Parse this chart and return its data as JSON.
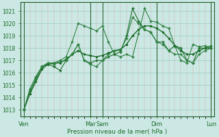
{
  "bg_color": "#cce8e4",
  "grid_major_color": "#99c8c0",
  "grid_minor_color": "#d4a8a8",
  "line_dark": "#1a6b28",
  "line_mid": "#2d8040",
  "xlabel": "Pression niveau de la mer( hPa )",
  "ylabel_ticks": [
    1013,
    1014,
    1015,
    1016,
    1017,
    1018,
    1019,
    1020,
    1021
  ],
  "ylim": [
    1012.5,
    1021.7
  ],
  "xtick_labels": [
    "Ven",
    "Mar",
    "Sam",
    "Dim",
    "Lun"
  ],
  "xtick_positions": [
    0,
    11,
    13,
    22,
    31
  ],
  "n_points": 32,
  "xlim": [
    -0.5,
    31.5
  ],
  "series1_x": [
    0,
    1,
    2,
    3,
    4,
    5,
    6,
    7,
    8,
    9,
    10,
    11,
    12,
    13,
    14,
    15,
    16,
    17,
    18,
    19,
    20,
    21,
    22,
    23,
    24,
    25,
    26,
    27,
    28,
    29,
    30,
    31
  ],
  "series1_y": [
    1013.0,
    1014.7,
    1015.7,
    1016.5,
    1016.8,
    1016.8,
    1017.0,
    1017.3,
    1018.5,
    1020.0,
    1019.8,
    1019.6,
    1019.4,
    1019.8,
    1018.5,
    1017.5,
    1017.3,
    1017.5,
    1017.3,
    1019.2,
    1021.2,
    1020.2,
    1020.1,
    1019.8,
    1019.6,
    1018.2,
    1017.0,
    1016.8,
    1018.3,
    1018.1,
    1018.2,
    1018.0
  ],
  "series2_x": [
    0,
    1,
    2,
    3,
    4,
    5,
    6,
    7,
    8,
    9,
    10,
    11,
    12,
    13,
    14,
    15,
    16,
    17,
    18,
    19,
    20,
    21,
    22,
    23,
    24,
    25,
    26,
    27,
    28,
    29,
    30,
    31
  ],
  "series2_y": [
    1013.0,
    1014.5,
    1015.5,
    1016.5,
    1016.7,
    1016.5,
    1016.2,
    1017.0,
    1017.5,
    1018.3,
    1017.0,
    1016.8,
    1017.0,
    1017.0,
    1017.3,
    1017.5,
    1017.7,
    1019.0,
    1021.2,
    1020.2,
    1019.5,
    1019.3,
    1018.5,
    1018.5,
    1017.8,
    1018.2,
    1018.0,
    1017.0,
    1016.8,
    1018.0,
    1018.0,
    1018.2
  ],
  "series3_x": [
    0,
    1,
    2,
    3,
    4,
    5,
    6,
    7,
    8,
    9,
    10,
    11,
    12,
    13,
    14,
    15,
    16,
    17,
    18,
    19,
    20,
    21,
    22,
    23,
    24,
    25,
    26,
    27,
    28,
    29,
    30,
    31
  ],
  "series3_y": [
    1013.0,
    1014.5,
    1015.5,
    1016.5,
    1016.8,
    1016.7,
    1016.9,
    1017.0,
    1017.5,
    1018.3,
    1017.0,
    1016.7,
    1016.5,
    1017.0,
    1017.5,
    1017.8,
    1017.8,
    1018.8,
    1020.5,
    1020.0,
    1019.5,
    1019.3,
    1018.5,
    1018.3,
    1017.8,
    1017.5,
    1017.5,
    1017.0,
    1016.8,
    1017.5,
    1017.8,
    1018.0
  ],
  "series4_x": [
    0,
    1,
    2,
    3,
    4,
    5,
    6,
    7,
    8,
    9,
    10,
    11,
    12,
    13,
    14,
    15,
    16,
    17,
    18,
    19,
    20,
    21,
    22,
    23,
    24,
    25,
    26,
    27,
    28,
    29,
    30,
    31
  ],
  "series4_y": [
    1013.0,
    1014.3,
    1015.3,
    1016.3,
    1016.7,
    1016.8,
    1016.8,
    1017.1,
    1017.5,
    1017.8,
    1017.5,
    1017.4,
    1017.3,
    1017.4,
    1017.6,
    1017.8,
    1017.9,
    1018.3,
    1019.0,
    1019.5,
    1019.8,
    1019.8,
    1019.6,
    1019.3,
    1018.8,
    1018.2,
    1017.8,
    1017.5,
    1017.5,
    1017.8,
    1018.0,
    1018.0
  ]
}
